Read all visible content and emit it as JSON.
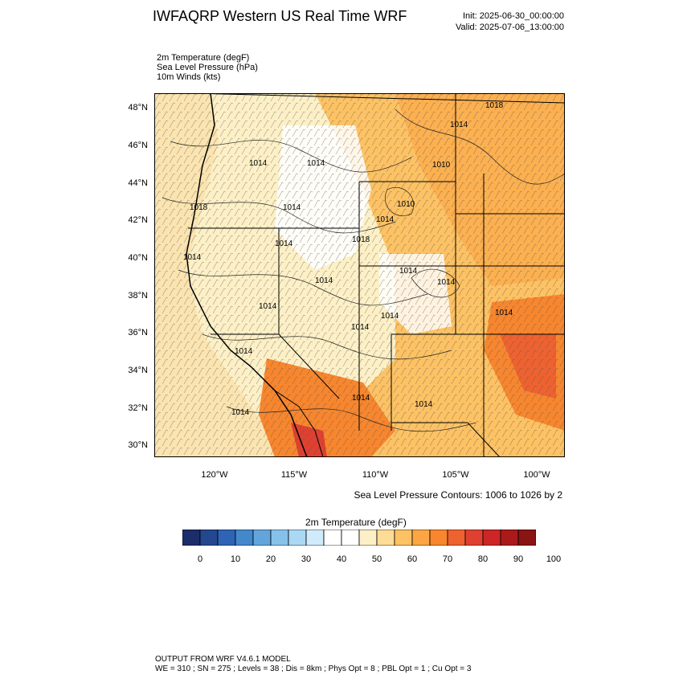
{
  "header": {
    "title": "IWFAQRP Western US Real Time WRF",
    "init": "Init: 2025-06-30_00:00:00",
    "valid": "Valid: 2025-07-06_13:00:00"
  },
  "fields": [
    "2m Temperature   (degF)",
    "Sea Level Pressure   (hPa)",
    "10m Winds   (kts)"
  ],
  "axes": {
    "lat_labels": [
      "48°N",
      "46°N",
      "44°N",
      "42°N",
      "40°N",
      "38°N",
      "36°N",
      "34°N",
      "32°N",
      "30°N"
    ],
    "lon_labels": [
      "120°W",
      "115°W",
      "110°W",
      "105°W",
      "100°W"
    ]
  },
  "pressure_labels": [
    "1018",
    "1014",
    "1010",
    "1014",
    "1018",
    "1014",
    "1010",
    "1014",
    "1018",
    "1014",
    "1014",
    "1014",
    "1014",
    "1014",
    "1014",
    "1014",
    "1014",
    "1014",
    "1014",
    "1014",
    "1014",
    "1014",
    "1014"
  ],
  "contour_note": "Sea Level Pressure Contours: 1006 to 1026 by 2",
  "colorbar": {
    "title": "2m Temperature  (degF)",
    "ticks": [
      "0",
      "10",
      "20",
      "30",
      "40",
      "50",
      "60",
      "70",
      "80",
      "90",
      "100"
    ],
    "colors": [
      "#1c2d6b",
      "#24478f",
      "#2e64b3",
      "#4488cc",
      "#62a5dd",
      "#86c1ea",
      "#aad8f5",
      "#d0ebfa",
      "#ffffff",
      "#ffffff",
      "#fdf0c6",
      "#fddc96",
      "#fdc264",
      "#fba642",
      "#f7862e",
      "#ee6230",
      "#e04030",
      "#cc2626",
      "#aa1a1a",
      "#8a1414"
    ]
  },
  "footer": {
    "line1": "OUTPUT FROM WRF V4.6.1 MODEL",
    "line2": "WE = 310 ; SN = 275 ; Levels = 38 ; Dis = 8km ; Phys Opt = 8 ; PBL Opt = 1 ; Cu Opt = 3"
  }
}
